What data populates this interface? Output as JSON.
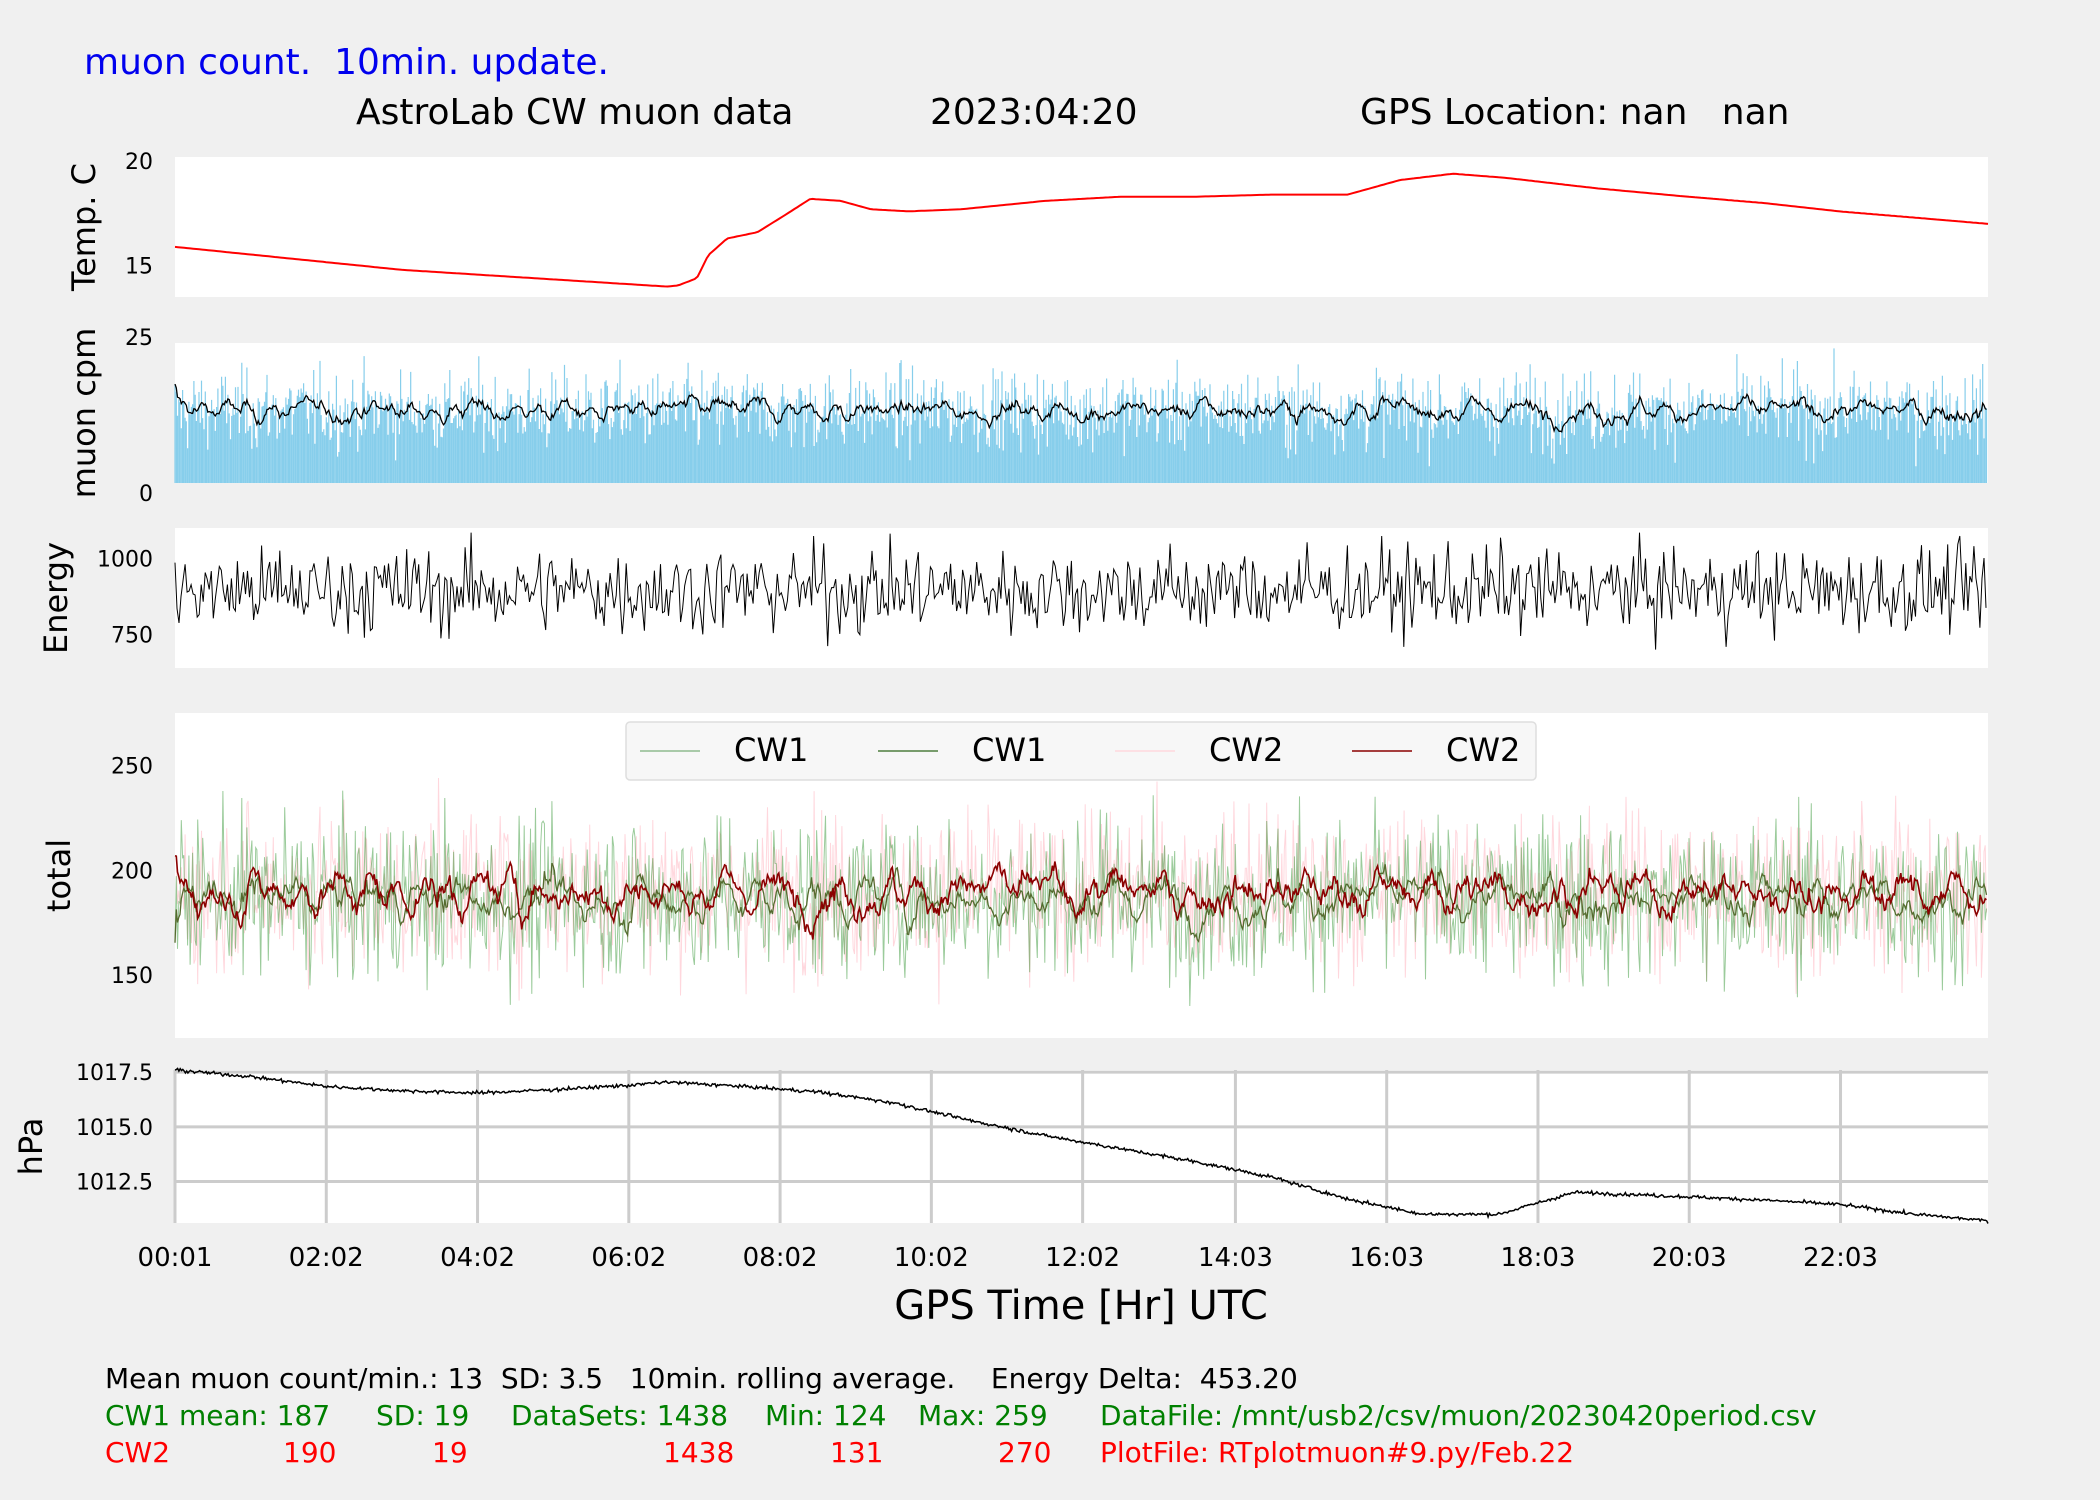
{
  "header": {
    "subtitle": "muon count.  10min. update.",
    "title": "AstroLab CW muon data",
    "date": "2023:04:20",
    "gps_location": "GPS Location: nan   nan"
  },
  "xaxis": {
    "label": "GPS Time  [Hr] UTC",
    "ticks": [
      "00:01",
      "02:02",
      "04:02",
      "06:02",
      "08:02",
      "10:02",
      "12:02",
      "14:03",
      "16:03",
      "18:03",
      "20:03",
      "22:03"
    ]
  },
  "chart_data": [
    {
      "type": "line",
      "ylabel": "Temp. C",
      "yticks": [
        "15",
        "20"
      ],
      "ylim": [
        13.5,
        20.2
      ],
      "series": [
        {
          "color": "#ff0000",
          "points": [
            [
              0,
              15.9
            ],
            [
              3,
              14.8
            ],
            [
              6.5,
              14.0
            ],
            [
              6.65,
              14.05
            ],
            [
              6.9,
              14.4
            ],
            [
              7.05,
              15.5
            ],
            [
              7.3,
              16.3
            ],
            [
              7.7,
              16.6
            ],
            [
              8.1,
              17.5
            ],
            [
              8.4,
              18.2
            ],
            [
              8.8,
              18.1
            ],
            [
              9.2,
              17.7
            ],
            [
              9.7,
              17.6
            ],
            [
              10.4,
              17.7
            ],
            [
              11.5,
              18.1
            ],
            [
              12.5,
              18.3
            ],
            [
              13.5,
              18.3
            ],
            [
              14.5,
              18.4
            ],
            [
              15.5,
              18.4
            ],
            [
              16.2,
              19.1
            ],
            [
              16.9,
              19.4
            ],
            [
              17.6,
              19.2
            ],
            [
              18.8,
              18.7
            ],
            [
              20,
              18.3
            ],
            [
              21,
              18.0
            ],
            [
              22,
              17.6
            ],
            [
              23,
              17.3
            ],
            [
              23.97,
              17.0
            ]
          ]
        }
      ],
      "grid": false
    },
    {
      "type": "bar+line",
      "ylabel": "muon cpm",
      "yticks": [
        "0",
        "25"
      ],
      "ylim": [
        0,
        25
      ],
      "bar_color": "#87ceeb",
      "mean_per_min": 13,
      "sd": 3.5,
      "rolling_average_color": "#000000",
      "grid": false
    },
    {
      "type": "line",
      "ylabel": "Energy",
      "yticks": [
        "750",
        "1000"
      ],
      "ylim": [
        640,
        1100
      ],
      "color": "#000000",
      "range_approx": [
        655,
        1085
      ],
      "grid": false
    },
    {
      "type": "line",
      "ylabel": "total",
      "yticks": [
        "150",
        "200",
        "250"
      ],
      "ylim": [
        120,
        275
      ],
      "legend": [
        "CW1",
        "CW1",
        "CW2",
        "CW2"
      ],
      "legend_colors": [
        "#8fbc8f",
        "#4f7f3f",
        "#ffd8de",
        "#8b0000"
      ],
      "legend_position": "top-center",
      "series": [
        {
          "name": "CW1",
          "style": "raw",
          "color": "#228b22",
          "mean": 187,
          "sd": 19,
          "min": 124,
          "max": 259
        },
        {
          "name": "CW1",
          "style": "rolling",
          "color": "#556b2f",
          "mean": 187
        },
        {
          "name": "CW2",
          "style": "raw",
          "color": "#ffb6c1",
          "mean": 190,
          "sd": 19,
          "min": 131,
          "max": 270
        },
        {
          "name": "CW2",
          "style": "rolling",
          "color": "#8b0000",
          "mean": 190
        }
      ],
      "grid": false
    },
    {
      "type": "line",
      "ylabel": "hPa",
      "yticks": [
        "1012.5",
        "1015.0",
        "1017.5"
      ],
      "ylim": [
        1010.6,
        1017.6
      ],
      "grid": true,
      "series": [
        {
          "color": "#000000",
          "points": [
            [
              0,
              1017.6
            ],
            [
              1,
              1017.3
            ],
            [
              2,
              1016.85
            ],
            [
              3,
              1016.65
            ],
            [
              4,
              1016.55
            ],
            [
              5,
              1016.7
            ],
            [
              6,
              1016.9
            ],
            [
              6.5,
              1017.05
            ],
            [
              7.5,
              1016.85
            ],
            [
              8.5,
              1016.6
            ],
            [
              9.5,
              1016.1
            ],
            [
              10.5,
              1015.3
            ],
            [
              11.5,
              1014.6
            ],
            [
              12.5,
              1014.0
            ],
            [
              13.5,
              1013.4
            ],
            [
              14.5,
              1012.7
            ],
            [
              15.5,
              1011.7
            ],
            [
              16.5,
              1011.0
            ],
            [
              17.5,
              1011.0
            ],
            [
              18,
              1011.5
            ],
            [
              18.5,
              1012.0
            ],
            [
              19.3,
              1011.9
            ],
            [
              20,
              1011.8
            ],
            [
              21,
              1011.65
            ],
            [
              22,
              1011.45
            ],
            [
              23,
              1011.0
            ],
            [
              23.97,
              1010.7
            ]
          ]
        }
      ]
    }
  ],
  "footer": {
    "line1": "Mean muon count/min.: 13  SD: 3.5   10min. rolling average.    Energy Delta:  453.20",
    "cw1": {
      "label": "CW1 mean: 187",
      "sd": "SD: 19",
      "datasets": "DataSets: 1438",
      "min": "Min: 124",
      "max": "Max: 259",
      "file": "DataFile: /mnt/usb2/csv/muon/20230420period.csv"
    },
    "cw2": {
      "label": "CW2",
      "mean": "190",
      "sd": "19",
      "datasets": "1438",
      "min": "131",
      "max": "270",
      "file": "PlotFile: RTplotmuon#9.py/Feb.22"
    }
  }
}
